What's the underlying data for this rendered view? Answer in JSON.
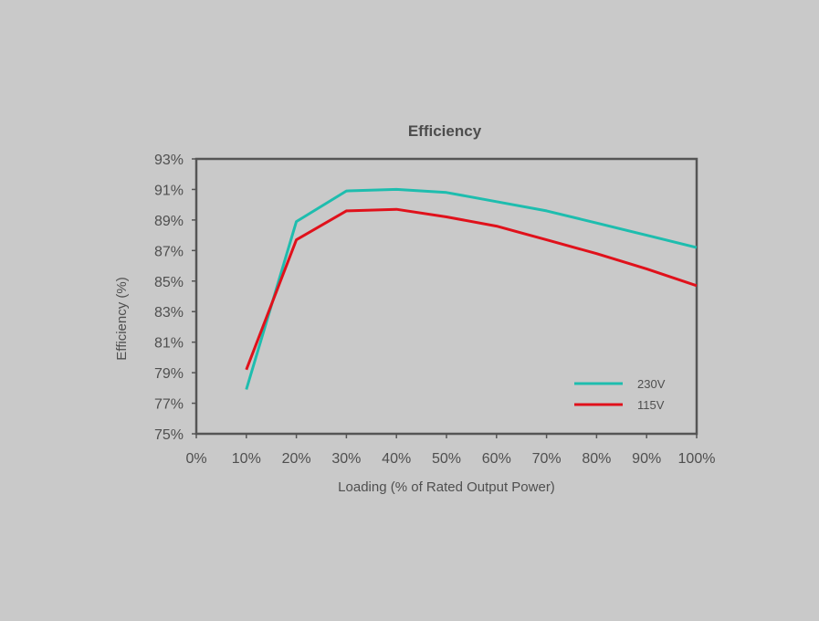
{
  "colors": {
    "background": "#c9c9c9",
    "series_230v": "#1ebdae",
    "series_115v": "#e0111b",
    "axis": "#555555",
    "text": "#4f4f4f"
  },
  "chart_data": {
    "type": "line",
    "title": "Efficiency",
    "xlabel": "Loading (% of Rated Output Power)",
    "ylabel": "Efficiency (%)",
    "x_ticks": [
      "0%",
      "10%",
      "20%",
      "30%",
      "40%",
      "50%",
      "60%",
      "70%",
      "80%",
      "90%",
      "100%"
    ],
    "y_ticks": [
      "93%",
      "91%",
      "89%",
      "87%",
      "85%",
      "83%",
      "81%",
      "79%",
      "77%",
      "75%"
    ],
    "xlim": [
      0,
      100
    ],
    "ylim": [
      75,
      93
    ],
    "grid": false,
    "legend_position": "bottom-right",
    "series": [
      {
        "name": "230V",
        "color": "#1ebdae",
        "x": [
          10,
          20,
          30,
          40,
          50,
          60,
          70,
          80,
          90,
          100
        ],
        "y": [
          77.9,
          88.9,
          90.9,
          91.0,
          90.8,
          90.2,
          89.6,
          88.8,
          88.0,
          87.2
        ]
      },
      {
        "name": "115V",
        "color": "#e0111b",
        "x": [
          10,
          20,
          30,
          40,
          50,
          60,
          70,
          80,
          90,
          100
        ],
        "y": [
          79.2,
          87.7,
          89.6,
          89.7,
          89.2,
          88.6,
          87.7,
          86.8,
          85.8,
          84.7
        ]
      }
    ]
  }
}
